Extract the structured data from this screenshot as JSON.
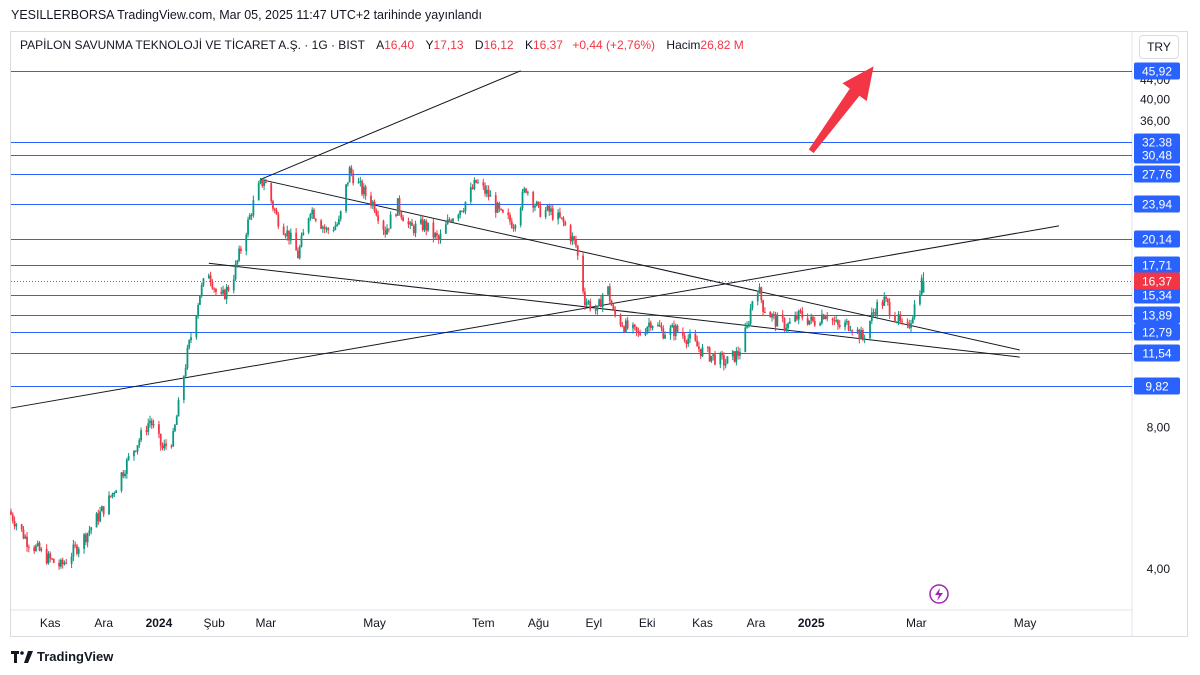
{
  "header": {
    "published_by": "YESILLERBORSA TradingView.com, Mar 05, 2025 11:47 UTC+2 tarihinde yayınlandı"
  },
  "legend": {
    "symbol": "PAPİLON SAVUNMA TEKNOLOJİ VE TİCARET A.Ş. · 1G · BIST",
    "open_label": "A",
    "open": "16,40",
    "high_label": "Y",
    "high": "17,13",
    "low_label": "D",
    "low": "16,12",
    "close_label": "K",
    "close": "16,37",
    "change": "+0,44 (+2,76%)",
    "volume_label": "Hacim",
    "volume": "26,82 M"
  },
  "currency_button": "TRY",
  "brand": {
    "name": "TradingView"
  },
  "colors": {
    "up": "#089981",
    "down": "#f23645",
    "hline": "#2962ff",
    "trend": "#131722",
    "arrow": "#f23645",
    "price_tag": "#f23645",
    "level_tag": "#2962ff"
  },
  "icons": [
    "lightning-icon",
    "tradingview-logo-icon"
  ],
  "chart_data": {
    "type": "candlestick",
    "y_scale": "log",
    "ylim": [
      3.4,
      48.5
    ],
    "y_ticks": [
      "4,00",
      "8,00",
      "36,00",
      "40,00",
      "44,00"
    ],
    "x_ticks": [
      {
        "label": "Kas",
        "date": "2023-11-01",
        "bold": false
      },
      {
        "label": "Ara",
        "date": "2023-12-01",
        "bold": false
      },
      {
        "label": "2024",
        "date": "2024-01-01",
        "bold": true
      },
      {
        "label": "Şub",
        "date": "2024-02-01",
        "bold": false
      },
      {
        "label": "Mar",
        "date": "2024-03-01",
        "bold": false
      },
      {
        "label": "May",
        "date": "2024-05-01",
        "bold": false
      },
      {
        "label": "Tem",
        "date": "2024-07-01",
        "bold": false
      },
      {
        "label": "Ağu",
        "date": "2024-08-01",
        "bold": false
      },
      {
        "label": "Eyl",
        "date": "2024-09-01",
        "bold": false
      },
      {
        "label": "Eki",
        "date": "2024-10-01",
        "bold": false
      },
      {
        "label": "Kas",
        "date": "2024-11-01",
        "bold": false
      },
      {
        "label": "Ara",
        "date": "2024-12-01",
        "bold": false
      },
      {
        "label": "2025",
        "date": "2025-01-01",
        "bold": true
      },
      {
        "label": "Mar",
        "date": "2025-03-01",
        "bold": false
      },
      {
        "label": "May",
        "date": "2025-05-01",
        "bold": false
      }
    ],
    "x_range": [
      "2023-10-10",
      "2025-06-30"
    ],
    "current_price": {
      "value": 16.37,
      "label": "16,37"
    },
    "horizontal_levels": [
      {
        "value": 45.92,
        "label": "45,92"
      },
      {
        "value": 32.38,
        "label": "32,38"
      },
      {
        "value": 30.48,
        "label": "30,48"
      },
      {
        "value": 27.76,
        "label": "27,76"
      },
      {
        "value": 23.94,
        "label": "23,94"
      },
      {
        "value": 20.14,
        "label": "20,14"
      },
      {
        "value": 17.71,
        "label": "17,71"
      },
      {
        "value": 15.34,
        "label": "15,34"
      },
      {
        "value": 13.89,
        "label": "13,89"
      },
      {
        "value": 12.79,
        "label": "12,79"
      },
      {
        "value": 11.54,
        "label": "11,54"
      },
      {
        "value": 9.82,
        "label": "9,82"
      }
    ],
    "trendlines": [
      {
        "from": {
          "date": "2024-02-27",
          "value": 27.0
        },
        "to": {
          "date": "2024-07-22",
          "value": 46.0
        }
      },
      {
        "from": {
          "date": "2024-02-27",
          "value": 27.0
        },
        "to": {
          "date": "2025-04-28",
          "value": 11.7
        }
      },
      {
        "from": {
          "date": "2024-01-29",
          "value": 17.9
        },
        "to": {
          "date": "2025-04-28",
          "value": 11.3
        }
      },
      {
        "from": {
          "date": "2023-10-10",
          "value": 8.8
        },
        "to": {
          "date": "2025-05-20",
          "value": 21.5
        }
      }
    ],
    "arrow": {
      "from": {
        "date": "2025-01-01",
        "value": 31.0
      },
      "to": {
        "date": "2025-02-05",
        "value": 47.0
      }
    },
    "price_path": [
      [
        "2023-10-10",
        5.3
      ],
      [
        "2023-10-20",
        4.6
      ],
      [
        "2023-11-01",
        4.2
      ],
      [
        "2023-11-08",
        4.05
      ],
      [
        "2023-11-20",
        4.6
      ],
      [
        "2023-12-05",
        5.6
      ],
      [
        "2023-12-18",
        7.1
      ],
      [
        "2023-12-28",
        8.3
      ],
      [
        "2024-01-04",
        7.2
      ],
      [
        "2024-01-10",
        7.6
      ],
      [
        "2024-01-18",
        11.5
      ],
      [
        "2024-01-25",
        15.5
      ],
      [
        "2024-01-30",
        17.2
      ],
      [
        "2024-02-05",
        14.8
      ],
      [
        "2024-02-12",
        16.4
      ],
      [
        "2024-02-19",
        20.5
      ],
      [
        "2024-02-26",
        25.5
      ],
      [
        "2024-03-01",
        27.0
      ],
      [
        "2024-03-08",
        22.5
      ],
      [
        "2024-03-15",
        20.5
      ],
      [
        "2024-03-20",
        18.6
      ],
      [
        "2024-03-27",
        23.5
      ],
      [
        "2024-04-05",
        21.0
      ],
      [
        "2024-04-12",
        21.8
      ],
      [
        "2024-04-18",
        28.2
      ],
      [
        "2024-04-25",
        25.6
      ],
      [
        "2024-05-02",
        23.8
      ],
      [
        "2024-05-08",
        21.0
      ],
      [
        "2024-05-15",
        23.8
      ],
      [
        "2024-05-22",
        21.2
      ],
      [
        "2024-05-30",
        21.6
      ],
      [
        "2024-06-07",
        20.0
      ],
      [
        "2024-06-14",
        22.5
      ],
      [
        "2024-06-21",
        23.8
      ],
      [
        "2024-06-28",
        26.6
      ],
      [
        "2024-07-05",
        25.0
      ],
      [
        "2024-07-12",
        22.6
      ],
      [
        "2024-07-19",
        21.8
      ],
      [
        "2024-07-26",
        26.0
      ],
      [
        "2024-08-02",
        23.2
      ],
      [
        "2024-08-09",
        23.0
      ],
      [
        "2024-08-16",
        21.8
      ],
      [
        "2024-08-23",
        19.5
      ],
      [
        "2024-08-28",
        15.0
      ],
      [
        "2024-09-04",
        14.1
      ],
      [
        "2024-09-09",
        16.3
      ],
      [
        "2024-09-13",
        14.0
      ],
      [
        "2024-09-20",
        13.1
      ],
      [
        "2024-09-27",
        12.6
      ],
      [
        "2024-10-04",
        13.5
      ],
      [
        "2024-10-11",
        12.8
      ],
      [
        "2024-10-18",
        12.9
      ],
      [
        "2024-10-25",
        12.4
      ],
      [
        "2024-11-01",
        11.7
      ],
      [
        "2024-11-08",
        11.3
      ],
      [
        "2024-11-15",
        11.0
      ],
      [
        "2024-11-22",
        11.5
      ],
      [
        "2024-11-27",
        13.0
      ],
      [
        "2024-12-02",
        16.5
      ],
      [
        "2024-12-06",
        14.5
      ],
      [
        "2024-12-13",
        13.5
      ],
      [
        "2024-12-20",
        13.2
      ],
      [
        "2024-12-27",
        13.9
      ],
      [
        "2025-01-03",
        13.4
      ],
      [
        "2025-01-10",
        14.1
      ],
      [
        "2025-01-17",
        13.1
      ],
      [
        "2025-01-24",
        13.3
      ],
      [
        "2025-01-31",
        12.4
      ],
      [
        "2025-02-07",
        14.4
      ],
      [
        "2025-02-12",
        14.9
      ],
      [
        "2025-02-19",
        13.7
      ],
      [
        "2025-02-24",
        12.6
      ],
      [
        "2025-02-28",
        14.1
      ],
      [
        "2025-03-05",
        16.37
      ]
    ]
  }
}
